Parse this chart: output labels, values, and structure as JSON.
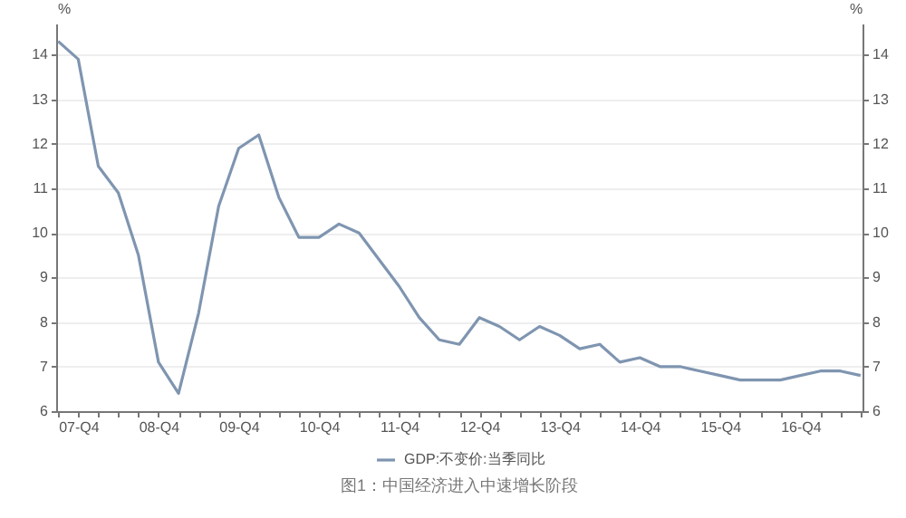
{
  "chart_data": {
    "type": "line",
    "title": "图1：中国经济进入中速增长阶段",
    "ylabel": "%",
    "y2label": "%",
    "categories": [
      null,
      "07-Q4",
      null,
      null,
      null,
      "08-Q4",
      null,
      null,
      null,
      "09-Q4",
      null,
      null,
      null,
      "10-Q4",
      null,
      null,
      null,
      "11-Q4",
      null,
      null,
      null,
      "12-Q4",
      null,
      null,
      null,
      "13-Q4",
      null,
      null,
      null,
      "14-Q4",
      null,
      null,
      null,
      "15-Q4",
      null,
      null,
      null,
      "16-Q4",
      null,
      null,
      null
    ],
    "series": [
      {
        "name": "GDP:不变价:当季同比",
        "color": "#7f95b0",
        "values": [
          14.3,
          13.9,
          11.5,
          10.9,
          9.5,
          7.1,
          6.4,
          8.2,
          10.6,
          11.9,
          12.2,
          10.8,
          9.9,
          9.9,
          10.2,
          10.0,
          9.4,
          8.8,
          8.1,
          7.6,
          7.5,
          8.1,
          7.9,
          7.6,
          7.9,
          7.7,
          7.4,
          7.5,
          7.1,
          7.2,
          7.0,
          7.0,
          6.9,
          6.8,
          6.7,
          6.7,
          6.7,
          6.8,
          6.9,
          6.9,
          6.8
        ]
      }
    ],
    "ylim": [
      6,
      14.7
    ],
    "yticks": [
      6,
      7,
      8,
      9,
      10,
      11,
      12,
      13,
      14
    ],
    "y2lim": [
      6,
      14.7
    ],
    "y2ticks": [
      6,
      7,
      8,
      9,
      10,
      11,
      12,
      13,
      14
    ],
    "grid": "y",
    "legend": "bottom",
    "line_style": "solid",
    "marker": "none"
  }
}
